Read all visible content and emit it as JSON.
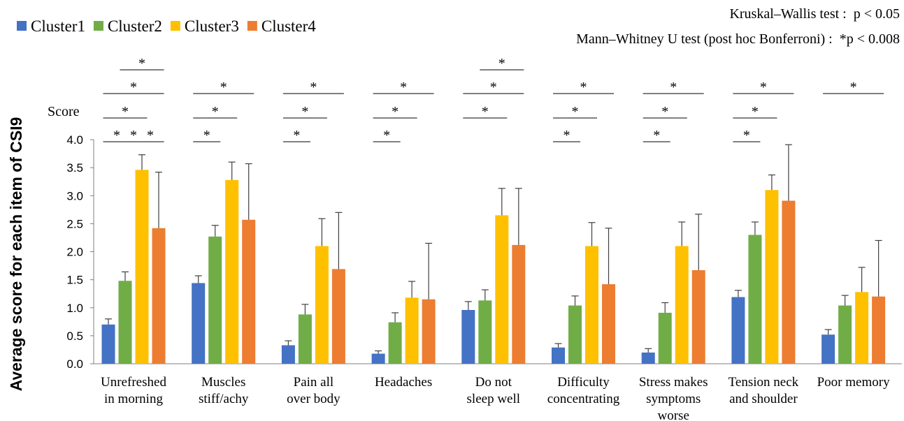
{
  "chart_data": {
    "type": "bar",
    "ylabel": "Average score for each item of CSI9",
    "y_unit_label": "Score",
    "ylim": [
      0,
      4.0
    ],
    "yticks": [
      "0.0",
      "0.5",
      "1.0",
      "1.5",
      "2.0",
      "2.5",
      "3.0",
      "3.5",
      "4.0"
    ],
    "grid": false,
    "legend_position": "top-left",
    "stats_notes": [
      "Kruskal–Wallis test :  p < 0.05",
      "Mann–Whitney U test (post hoc Bonferroni) :  *p < 0.008"
    ],
    "categories": [
      [
        "Unrefreshed",
        "in morning"
      ],
      [
        "Muscles",
        "stiff/achy"
      ],
      [
        "Pain all",
        "over body"
      ],
      [
        "Headaches"
      ],
      [
        "Do not",
        "sleep well"
      ],
      [
        "Difficulty",
        "concentrating"
      ],
      [
        "Stress makes",
        "symptoms",
        "worse"
      ],
      [
        "Tension neck",
        "and shoulder"
      ],
      [
        "Poor memory"
      ]
    ],
    "series": [
      {
        "name": "Cluster1",
        "color": "#4472C4",
        "values": [
          0.7,
          1.44,
          0.33,
          0.18,
          0.96,
          0.29,
          0.2,
          1.19,
          0.52
        ],
        "errors": [
          0.1,
          0.13,
          0.08,
          0.05,
          0.15,
          0.07,
          0.07,
          0.12,
          0.09
        ]
      },
      {
        "name": "Cluster2",
        "color": "#70AD47",
        "values": [
          1.48,
          2.27,
          0.88,
          0.74,
          1.13,
          1.04,
          0.91,
          2.3,
          1.04
        ],
        "errors": [
          0.16,
          0.2,
          0.18,
          0.17,
          0.19,
          0.17,
          0.18,
          0.23,
          0.18
        ]
      },
      {
        "name": "Cluster3",
        "color": "#FFC000",
        "values": [
          3.46,
          3.28,
          2.1,
          1.18,
          2.65,
          2.1,
          2.1,
          3.1,
          1.28
        ],
        "errors": [
          0.27,
          0.32,
          0.49,
          0.29,
          0.48,
          0.42,
          0.43,
          0.27,
          0.44
        ]
      },
      {
        "name": "Cluster4",
        "color": "#ED7D31",
        "values": [
          2.42,
          2.57,
          1.69,
          1.15,
          2.12,
          1.42,
          1.67,
          2.91,
          1.2
        ],
        "errors": [
          1.0,
          1.0,
          1.01,
          1.0,
          1.01,
          1.0,
          1.0,
          1.0,
          1.0
        ]
      }
    ],
    "significance": [
      [
        {
          "from": 1,
          "to": 2,
          "level": 0
        },
        {
          "from": 2,
          "to": 3,
          "level": 0
        },
        {
          "from": 3,
          "to": 4,
          "level": 0
        },
        {
          "from": 1,
          "to": 3,
          "level": 1
        },
        {
          "from": 1,
          "to": 4,
          "level": 2
        },
        {
          "from": 2,
          "to": 4,
          "level": 3
        }
      ],
      [
        {
          "from": 1,
          "to": 2,
          "level": 0
        },
        {
          "from": 1,
          "to": 3,
          "level": 1
        },
        {
          "from": 1,
          "to": 4,
          "level": 2
        }
      ],
      [
        {
          "from": 1,
          "to": 2,
          "level": 0
        },
        {
          "from": 1,
          "to": 3,
          "level": 1
        },
        {
          "from": 1,
          "to": 4,
          "level": 2
        }
      ],
      [
        {
          "from": 1,
          "to": 2,
          "level": 0
        },
        {
          "from": 1,
          "to": 3,
          "level": 1
        },
        {
          "from": 1,
          "to": 4,
          "level": 2
        }
      ],
      [
        {
          "from": 1,
          "to": 3,
          "level": 1
        },
        {
          "from": 1,
          "to": 4,
          "level": 2
        },
        {
          "from": 2,
          "to": 4,
          "level": 3
        }
      ],
      [
        {
          "from": 1,
          "to": 2,
          "level": 0
        },
        {
          "from": 1,
          "to": 3,
          "level": 1
        },
        {
          "from": 1,
          "to": 4,
          "level": 2
        }
      ],
      [
        {
          "from": 1,
          "to": 2,
          "level": 0
        },
        {
          "from": 1,
          "to": 3,
          "level": 1
        },
        {
          "from": 1,
          "to": 4,
          "level": 2
        }
      ],
      [
        {
          "from": 1,
          "to": 2,
          "level": 0
        },
        {
          "from": 1,
          "to": 3,
          "level": 1
        },
        {
          "from": 1,
          "to": 4,
          "level": 2
        }
      ],
      [
        {
          "from": 1,
          "to": 4,
          "level": 2
        }
      ]
    ],
    "significance_mark": "*"
  }
}
